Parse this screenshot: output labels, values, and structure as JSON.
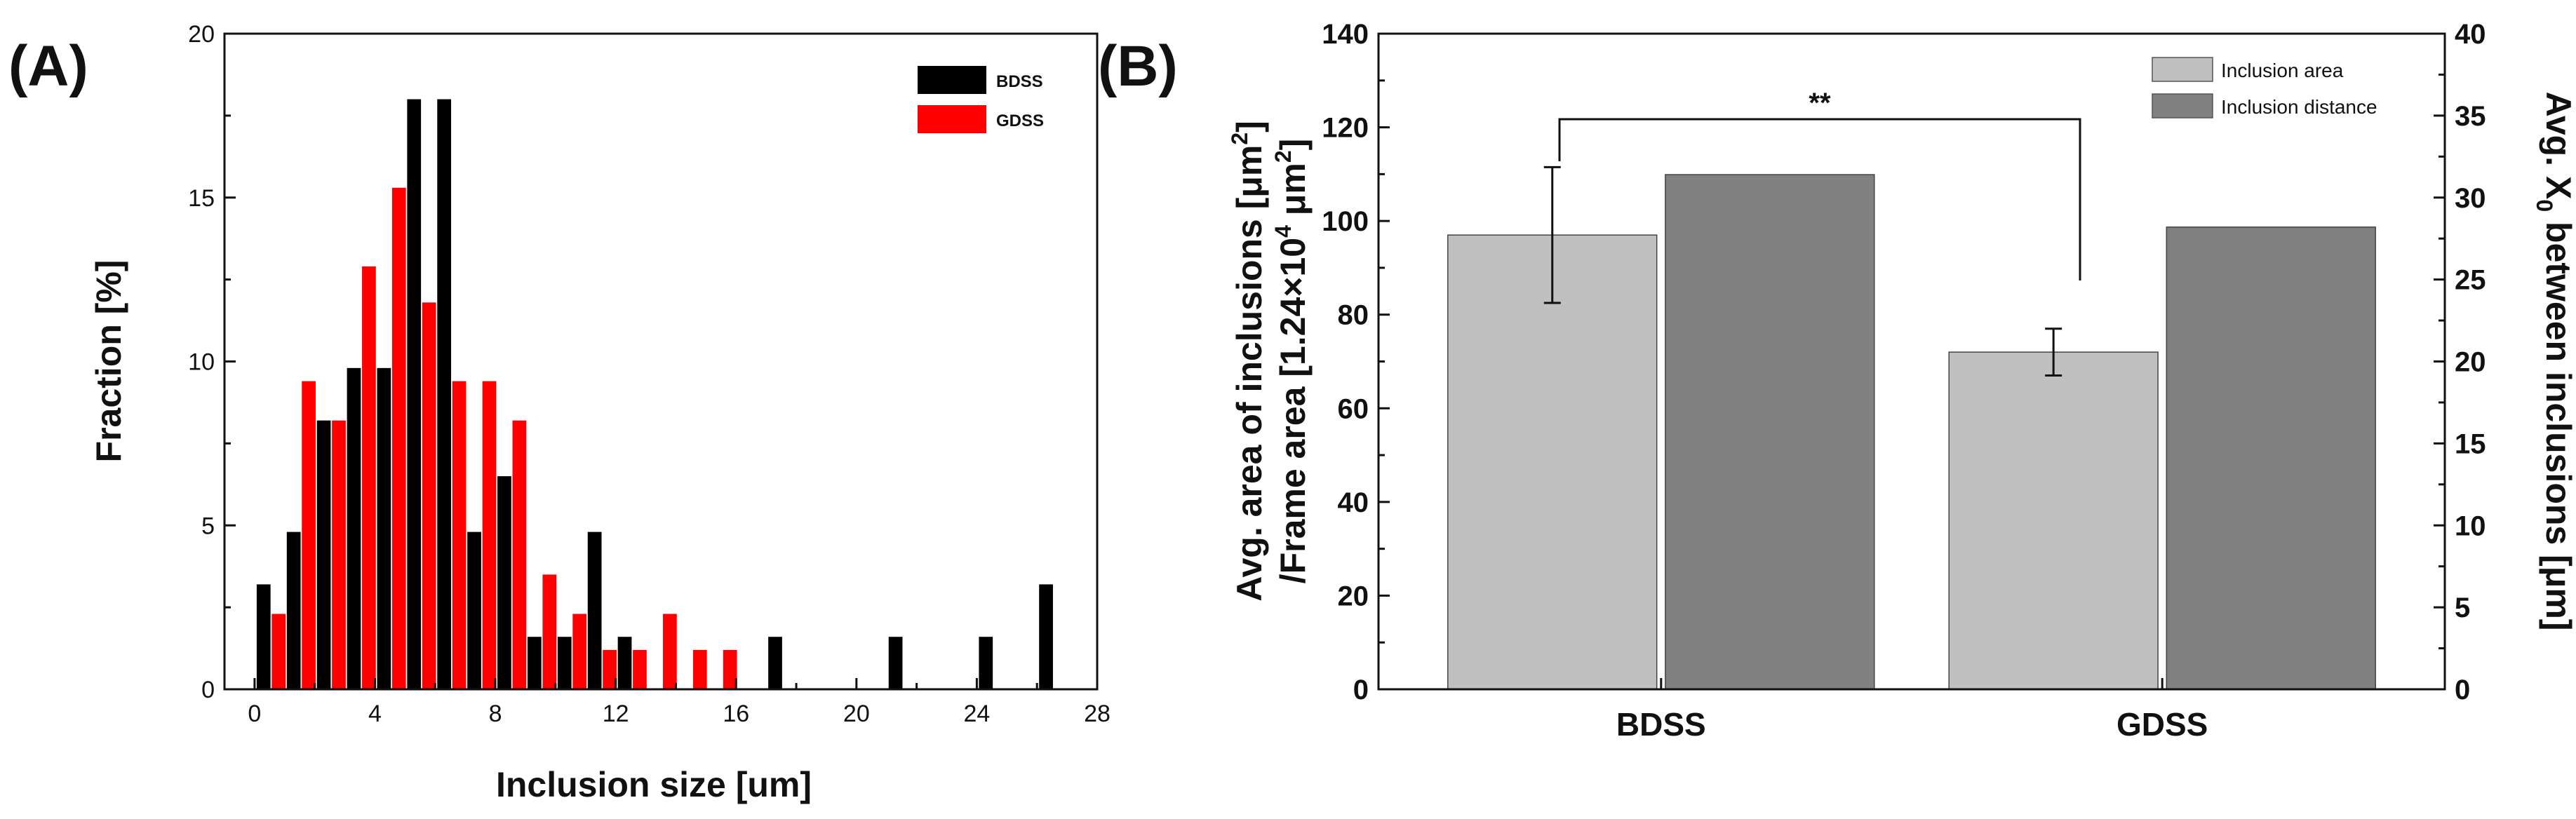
{
  "chart_data": [
    {
      "type": "bar",
      "panel_label": "(A)",
      "title": "",
      "xlabel": "Inclusion size [um]",
      "ylabel": "Fraction [%]",
      "xlim": [
        -1,
        28
      ],
      "ylim": [
        0,
        20
      ],
      "xticks": [
        0,
        4,
        8,
        12,
        16,
        20,
        24,
        28
      ],
      "yticks": [
        0,
        5,
        10,
        15,
        20
      ],
      "legend_position": "top-right",
      "series": [
        {
          "name": "BDSS",
          "color": "#000000",
          "points": [
            {
              "x": 0.3,
              "y": 3.2
            },
            {
              "x": 1.3,
              "y": 4.8
            },
            {
              "x": 2.3,
              "y": 8.2
            },
            {
              "x": 3.3,
              "y": 9.8
            },
            {
              "x": 4.3,
              "y": 9.8
            },
            {
              "x": 5.3,
              "y": 18.0
            },
            {
              "x": 6.3,
              "y": 18.0
            },
            {
              "x": 7.3,
              "y": 4.8
            },
            {
              "x": 8.3,
              "y": 6.5
            },
            {
              "x": 9.3,
              "y": 1.6
            },
            {
              "x": 10.3,
              "y": 1.6
            },
            {
              "x": 11.3,
              "y": 4.8
            },
            {
              "x": 12.3,
              "y": 1.6
            },
            {
              "x": 17.3,
              "y": 1.6
            },
            {
              "x": 21.3,
              "y": 1.6
            },
            {
              "x": 24.3,
              "y": 1.6
            },
            {
              "x": 26.3,
              "y": 3.2
            }
          ]
        },
        {
          "name": "GDSS",
          "color": "#ff0000",
          "points": [
            {
              "x": 0.8,
              "y": 2.3
            },
            {
              "x": 1.8,
              "y": 9.4
            },
            {
              "x": 2.8,
              "y": 8.2
            },
            {
              "x": 3.8,
              "y": 12.9
            },
            {
              "x": 4.8,
              "y": 15.3
            },
            {
              "x": 5.8,
              "y": 11.8
            },
            {
              "x": 6.8,
              "y": 9.4
            },
            {
              "x": 7.8,
              "y": 9.4
            },
            {
              "x": 8.8,
              "y": 8.2
            },
            {
              "x": 9.8,
              "y": 3.5
            },
            {
              "x": 10.8,
              "y": 2.3
            },
            {
              "x": 11.8,
              "y": 1.2
            },
            {
              "x": 12.8,
              "y": 1.2
            },
            {
              "x": 13.8,
              "y": 2.3
            },
            {
              "x": 14.8,
              "y": 1.2
            },
            {
              "x": 15.8,
              "y": 1.2
            }
          ]
        }
      ]
    },
    {
      "type": "bar",
      "panel_label": "(B)",
      "title": "",
      "categories": [
        "BDSS",
        "GDSS"
      ],
      "ylabel_left_line1": "Avg. area of inclusions [μm",
      "ylabel_left_sup1": "2",
      "ylabel_left_close1": "]",
      "ylabel_left_line2": "/Frame area [1.24×10",
      "ylabel_left_sup2": "4",
      "ylabel_left_unit2": " μm",
      "ylabel_left_sup3": "2",
      "ylabel_left_close2": "]",
      "ylabel_right_part1": "Avg. X",
      "ylabel_right_sub": "0",
      "ylabel_right_part2": " between inclusions [μm]",
      "ylim_left": [
        0,
        140
      ],
      "ylim_right": [
        0,
        40
      ],
      "yticks_left": [
        0,
        20,
        40,
        60,
        80,
        100,
        120,
        140
      ],
      "yticks_right": [
        0,
        5,
        10,
        15,
        20,
        25,
        30,
        35,
        40
      ],
      "legend_position": "top-right",
      "series": [
        {
          "name": "Inclusion area",
          "axis": "left",
          "color": "#c0c0c0",
          "values": [
            97,
            72
          ],
          "errors": [
            14.5,
            5
          ]
        },
        {
          "name": "Inclusion distance",
          "axis": "right",
          "color": "#808080",
          "values": [
            31.4,
            28.2
          ]
        }
      ],
      "annotation": "**"
    }
  ]
}
